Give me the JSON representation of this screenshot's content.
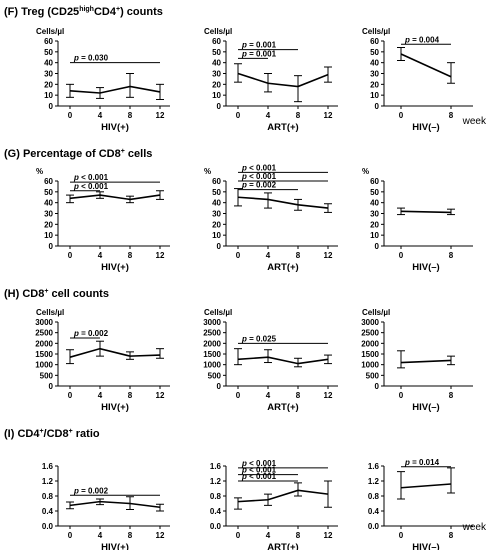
{
  "rows": [
    {
      "title_prefix": "(F) Treg (CD25",
      "title_sup1": "high",
      "title_mid": "CD4",
      "title_sup2": "+",
      "title_suffix": ") counts"
    },
    {
      "title_prefix": "(G) Percentage of CD8",
      "title_sup1": "+",
      "title_mid": " cells",
      "title_sup2": "",
      "title_suffix": ""
    },
    {
      "title_prefix": "(H) CD8",
      "title_sup1": "+",
      "title_mid": " cell counts",
      "title_sup2": "",
      "title_suffix": ""
    },
    {
      "title_prefix": "(I) CD4",
      "title_sup1": "+",
      "title_mid": "/CD8",
      "title_sup2": "+",
      "title_suffix": " ratio"
    }
  ],
  "week_label": "week",
  "chart_data": [
    {
      "type": "line",
      "row": 0,
      "col": 0,
      "unit": "Cells/µl",
      "xlabel": "HIV(+)",
      "x": [
        0,
        4,
        8,
        12
      ],
      "ylim": [
        0,
        60
      ],
      "yticks": [
        0,
        10,
        20,
        30,
        40,
        50,
        60
      ],
      "series": [
        {
          "values": [
            14,
            12,
            18,
            13
          ],
          "err_low": [
            8,
            7,
            8,
            6
          ],
          "err_high": [
            20,
            17,
            30,
            20
          ]
        }
      ],
      "annotations": [
        {
          "text": "p = 0.030",
          "x1": 0,
          "x2": 12,
          "y": 40
        }
      ]
    },
    {
      "type": "line",
      "row": 0,
      "col": 1,
      "unit": "Cells/µl",
      "xlabel": "ART(+)",
      "x": [
        0,
        4,
        8,
        12
      ],
      "ylim": [
        0,
        60
      ],
      "yticks": [
        0,
        10,
        20,
        30,
        40,
        50,
        60
      ],
      "series": [
        {
          "values": [
            30,
            21,
            18,
            29
          ],
          "err_low": [
            22,
            13,
            4,
            22
          ],
          "err_high": [
            39,
            30,
            28,
            36
          ]
        }
      ],
      "annotations": [
        {
          "text": "p = 0.001",
          "x1": 0,
          "x2": 8,
          "y": 52
        },
        {
          "text": "p = 0.001",
          "x1": 0,
          "x2": 4,
          "y": 44
        }
      ]
    },
    {
      "type": "line",
      "row": 0,
      "col": 2,
      "unit": "Cells/µl",
      "xlabel": "HIV(–)",
      "x": [
        0,
        8
      ],
      "ylim": [
        0,
        60
      ],
      "yticks": [
        0,
        10,
        20,
        30,
        40,
        50,
        60
      ],
      "series": [
        {
          "values": [
            48,
            27
          ],
          "err_low": [
            42,
            21
          ],
          "err_high": [
            54,
            40
          ]
        }
      ],
      "annotations": [
        {
          "text": "p = 0.004",
          "x1": 0,
          "x2": 8,
          "y": 57
        }
      ]
    },
    {
      "type": "line",
      "row": 1,
      "col": 0,
      "unit": "%",
      "xlabel": "HIV(+)",
      "x": [
        0,
        4,
        8,
        12
      ],
      "ylim": [
        0,
        60
      ],
      "yticks": [
        0,
        10,
        20,
        30,
        40,
        50,
        60
      ],
      "series": [
        {
          "values": [
            44,
            47,
            43,
            47
          ],
          "err_low": [
            40,
            44,
            40,
            43
          ],
          "err_high": [
            47,
            50,
            46,
            51
          ]
        }
      ],
      "annotations": [
        {
          "text": "p < 0.001",
          "x1": 0,
          "x2": 12,
          "y": 59
        },
        {
          "text": "p < 0.001",
          "x1": 0,
          "x2": 4,
          "y": 51
        }
      ]
    },
    {
      "type": "line",
      "row": 1,
      "col": 1,
      "unit": "%",
      "xlabel": "ART(+)",
      "x": [
        0,
        4,
        8,
        12
      ],
      "ylim": [
        0,
        60
      ],
      "yticks": [
        0,
        10,
        20,
        30,
        40,
        50,
        60
      ],
      "series": [
        {
          "values": [
            45,
            43,
            38,
            35
          ],
          "err_low": [
            37,
            35,
            33,
            31
          ],
          "err_high": [
            53,
            49,
            43,
            39
          ]
        }
      ],
      "annotations": [
        {
          "text": "p < 0.001",
          "x1": 0,
          "x2": 12,
          "y": 68
        },
        {
          "text": "p < 0.001",
          "x1": 0,
          "x2": 12,
          "y": 60
        },
        {
          "text": "p = 0.002",
          "x1": 0,
          "x2": 8,
          "y": 52
        }
      ]
    },
    {
      "type": "line",
      "row": 1,
      "col": 2,
      "unit": "%",
      "xlabel": "HIV(–)",
      "x": [
        0,
        8
      ],
      "ylim": [
        0,
        60
      ],
      "yticks": [
        0,
        10,
        20,
        30,
        40,
        50,
        60
      ],
      "series": [
        {
          "values": [
            32,
            31
          ],
          "err_low": [
            29,
            29
          ],
          "err_high": [
            35,
            34
          ]
        }
      ],
      "annotations": []
    },
    {
      "type": "line",
      "row": 2,
      "col": 0,
      "unit": "Cells/µl",
      "xlabel": "HIV(+)",
      "x": [
        0,
        4,
        8,
        12
      ],
      "ylim": [
        0,
        3000
      ],
      "yticks": [
        0,
        500,
        1000,
        1500,
        2000,
        2500,
        3000
      ],
      "series": [
        {
          "values": [
            1350,
            1750,
            1400,
            1450
          ],
          "err_low": [
            1050,
            1400,
            1250,
            1300
          ],
          "err_high": [
            1700,
            2100,
            1600,
            1750
          ]
        }
      ],
      "annotations": [
        {
          "text": "p = 0.002",
          "x1": 0,
          "x2": 4,
          "y": 2250
        }
      ]
    },
    {
      "type": "line",
      "row": 2,
      "col": 1,
      "unit": "Cells/µl",
      "xlabel": "ART(+)",
      "x": [
        0,
        4,
        8,
        12
      ],
      "ylim": [
        0,
        3000
      ],
      "yticks": [
        0,
        500,
        1000,
        1500,
        2000,
        2500,
        3000
      ],
      "series": [
        {
          "values": [
            1250,
            1350,
            1050,
            1250
          ],
          "err_low": [
            1000,
            1100,
            900,
            1050
          ],
          "err_high": [
            1750,
            1700,
            1300,
            1450
          ]
        }
      ],
      "annotations": [
        {
          "text": "p = 0.025",
          "x1": 0,
          "x2": 12,
          "y": 2000
        }
      ]
    },
    {
      "type": "line",
      "row": 2,
      "col": 2,
      "unit": "Cells/µl",
      "xlabel": "HIV(–)",
      "x": [
        0,
        8
      ],
      "ylim": [
        0,
        3000
      ],
      "yticks": [
        0,
        500,
        1000,
        1500,
        2000,
        2500,
        3000
      ],
      "series": [
        {
          "values": [
            1100,
            1200
          ],
          "err_low": [
            850,
            1000
          ],
          "err_high": [
            1650,
            1400
          ]
        }
      ],
      "annotations": []
    },
    {
      "type": "line",
      "row": 3,
      "col": 0,
      "unit": "",
      "xlabel": "HIV(+)",
      "x": [
        0,
        4,
        8,
        12
      ],
      "ylim": [
        0,
        1.6
      ],
      "yticks": [
        0,
        0.4,
        0.8,
        1.2,
        1.6
      ],
      "series": [
        {
          "values": [
            0.55,
            0.65,
            0.6,
            0.5
          ],
          "err_low": [
            0.46,
            0.57,
            0.44,
            0.4
          ],
          "err_high": [
            0.64,
            0.72,
            0.78,
            0.58
          ]
        }
      ],
      "annotations": [
        {
          "text": "p = 0.002",
          "x1": 0,
          "x2": 12,
          "y": 0.82
        }
      ]
    },
    {
      "type": "line",
      "row": 3,
      "col": 1,
      "unit": "",
      "xlabel": "ART(+)",
      "x": [
        0,
        4,
        8,
        12
      ],
      "ylim": [
        0,
        1.6
      ],
      "yticks": [
        0,
        0.4,
        0.8,
        1.2,
        1.6
      ],
      "series": [
        {
          "values": [
            0.65,
            0.7,
            0.95,
            0.85
          ],
          "err_low": [
            0.45,
            0.55,
            0.8,
            0.5
          ],
          "err_high": [
            0.75,
            0.85,
            1.15,
            1.2
          ]
        }
      ],
      "annotations": [
        {
          "text": "p < 0.001",
          "x1": 0,
          "x2": 12,
          "y": 1.55
        },
        {
          "text": "p < 0.001",
          "x1": 0,
          "x2": 8,
          "y": 1.37
        },
        {
          "text": "p < 0.001",
          "x1": 0,
          "x2": 8,
          "y": 1.2
        }
      ]
    },
    {
      "type": "line",
      "row": 3,
      "col": 2,
      "unit": "",
      "xlabel": "HIV(–)",
      "x": [
        0,
        8
      ],
      "ylim": [
        0,
        1.6
      ],
      "yticks": [
        0,
        0.4,
        0.8,
        1.2,
        1.6
      ],
      "series": [
        {
          "values": [
            1.02,
            1.12
          ],
          "err_low": [
            0.72,
            0.88
          ],
          "err_high": [
            1.45,
            1.55
          ]
        }
      ],
      "annotations": [
        {
          "text": "p = 0.014",
          "x1": 0,
          "x2": 8,
          "y": 1.58
        }
      ]
    }
  ]
}
